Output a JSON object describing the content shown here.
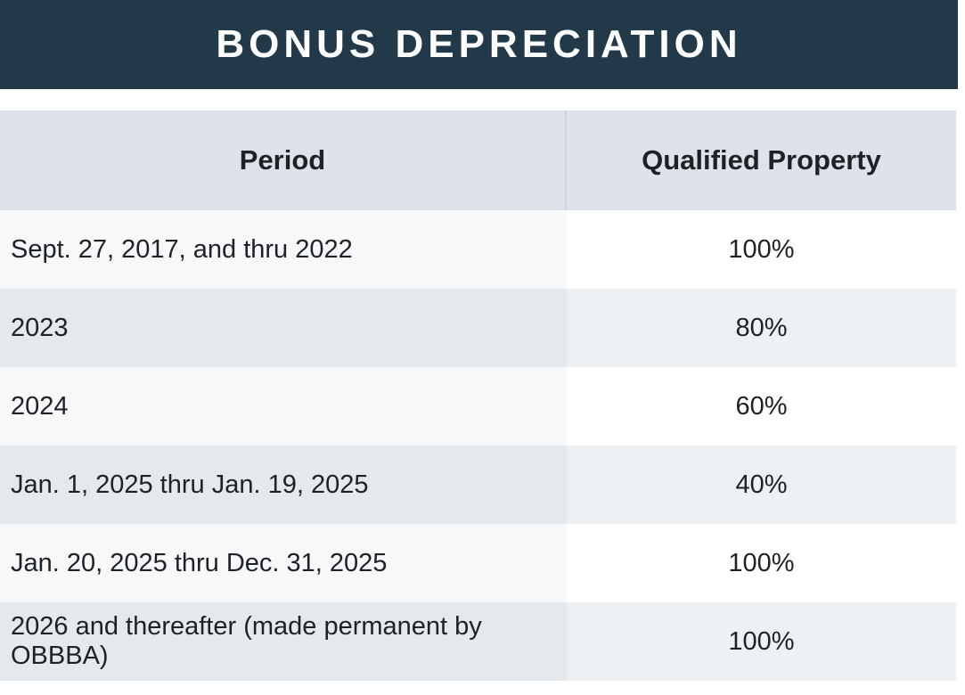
{
  "header": {
    "title": "BONUS DEPRECIATION"
  },
  "table": {
    "columns": [
      "Period",
      "Qualified Property"
    ],
    "rows": [
      [
        "Sept. 27, 2017, and thru 2022",
        "100%"
      ],
      [
        "2023",
        "80%"
      ],
      [
        "2024",
        "60%"
      ],
      [
        "Jan. 1, 2025 thru Jan. 19, 2025",
        "40%"
      ],
      [
        "Jan. 20, 2025 thru Dec. 31, 2025",
        "100%"
      ],
      [
        "2026 and thereafter (made permanent by OBBBA)",
        "100%"
      ]
    ]
  }
}
